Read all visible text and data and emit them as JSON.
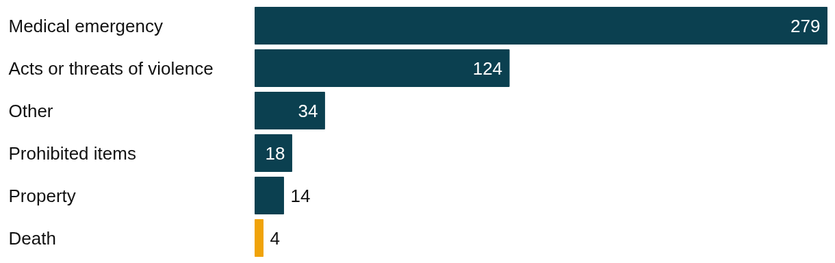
{
  "chart_data": {
    "type": "bar",
    "orientation": "horizontal",
    "categories": [
      "Medical emergency",
      "Acts or threats of violence",
      "Other",
      "Prohibited items",
      "Property",
      "Death"
    ],
    "values": [
      279,
      124,
      34,
      18,
      14,
      4
    ],
    "colors": [
      "#0b4050",
      "#0b4050",
      "#0b4050",
      "#0b4050",
      "#0b4050",
      "#f0a30a"
    ],
    "data_labels": true
  }
}
